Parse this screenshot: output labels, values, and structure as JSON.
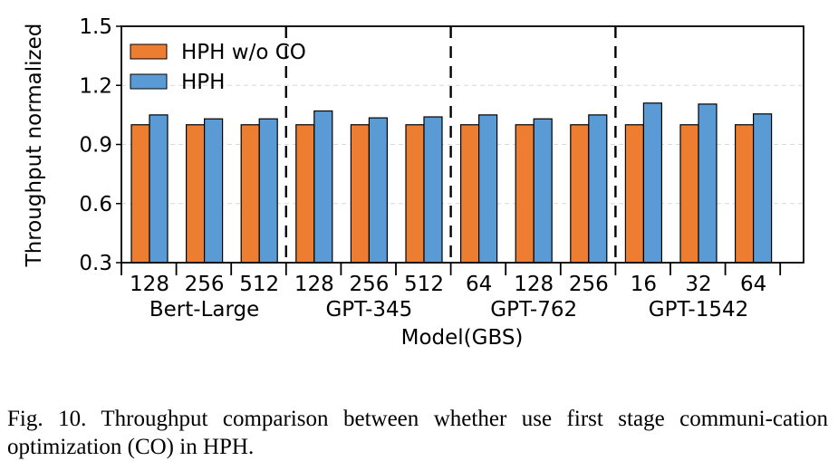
{
  "caption": "Fig. 10.  Throughput comparison between whether use first stage communi-cation optimization (CO) in HPH.",
  "chart_data": {
    "type": "bar",
    "ylabel": "Throughput normalized",
    "xlabel": "Model(GBS)",
    "ylim": [
      0.3,
      1.5
    ],
    "yticks": [
      "0.3",
      "0.6",
      "0.9",
      "1.2",
      "1.5"
    ],
    "grid": "horizontal dashed",
    "legend_position": "top-left",
    "categories": [
      "128",
      "256",
      "512",
      "128",
      "256",
      "512",
      "64",
      "128",
      "256",
      "16",
      "32",
      "64"
    ],
    "groups": [
      {
        "name": "Bert-Large",
        "count": 3
      },
      {
        "name": "GPT-345",
        "count": 3
      },
      {
        "name": "GPT-762",
        "count": 3
      },
      {
        "name": "GPT-1542",
        "count": 3
      }
    ],
    "series": [
      {
        "name": "HPH w/o CO",
        "color": "#ed7d31",
        "values": [
          1.0,
          1.0,
          1.0,
          1.0,
          1.0,
          1.0,
          1.0,
          1.0,
          1.0,
          1.0,
          1.0,
          1.0
        ]
      },
      {
        "name": "HPH",
        "color": "#5b9bd5",
        "values": [
          1.05,
          1.03,
          1.03,
          1.07,
          1.035,
          1.04,
          1.05,
          1.03,
          1.05,
          1.11,
          1.105,
          1.055
        ]
      }
    ]
  }
}
